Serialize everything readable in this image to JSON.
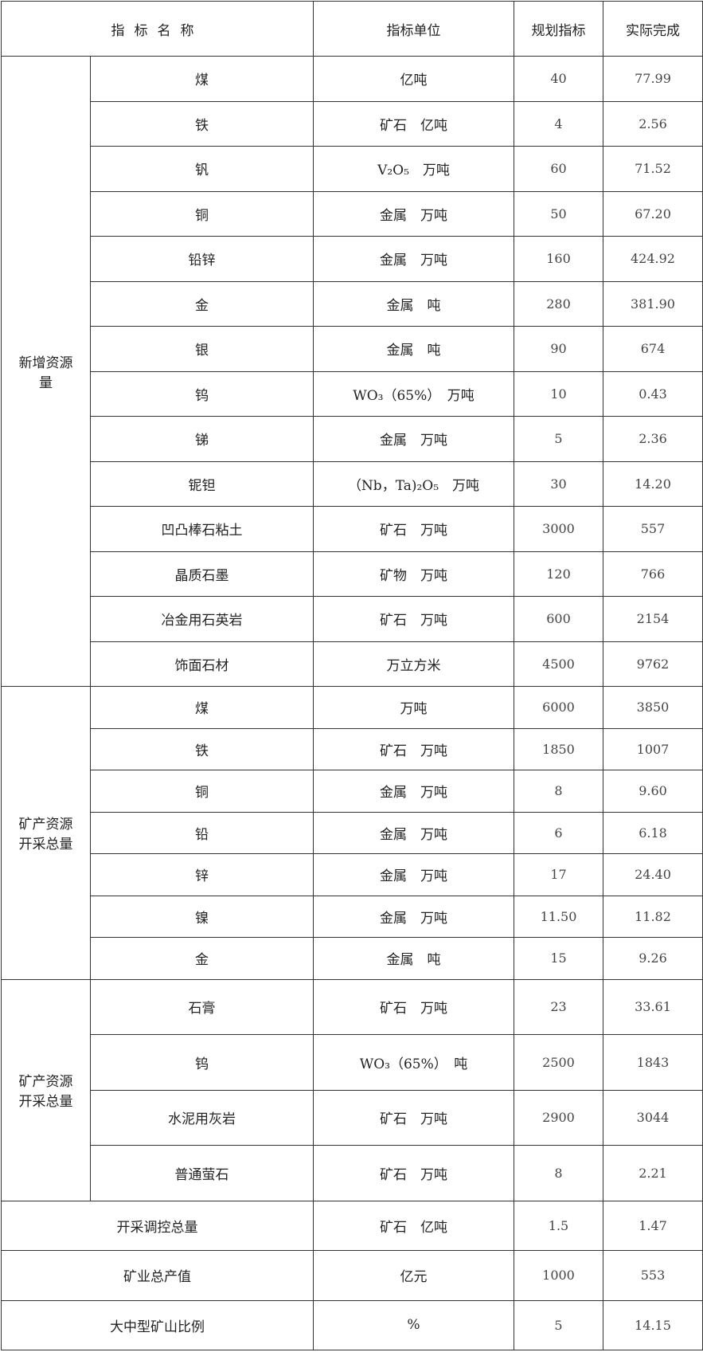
{
  "header": {
    "name": "指标名称",
    "unit": "指标单位",
    "plan": "规划指标",
    "actual": "实际完成"
  },
  "sections": [
    {
      "label": "新增资源量",
      "rows": [
        {
          "name": "煤",
          "unit": "亿吨",
          "plan": "40",
          "actual": "77.99"
        },
        {
          "name": "铁",
          "unit": "矿石　亿吨",
          "plan": "4",
          "actual": "2.56"
        },
        {
          "name": "钒",
          "unit": "V₂O₅　万吨",
          "plan": "60",
          "actual": "71.52"
        },
        {
          "name": "铜",
          "unit": "金属　万吨",
          "plan": "50",
          "actual": "67.20"
        },
        {
          "name": "铅锌",
          "unit": "金属　万吨",
          "plan": "160",
          "actual": "424.92"
        },
        {
          "name": "金",
          "unit": "金属　吨",
          "plan": "280",
          "actual": "381.90"
        },
        {
          "name": "银",
          "unit": "金属　吨",
          "plan": "90",
          "actual": "674"
        },
        {
          "name": "钨",
          "unit": "WO₃（65%）　万吨",
          "plan": "10",
          "actual": "0.43"
        },
        {
          "name": "锑",
          "unit": "金属　万吨",
          "plan": "5",
          "actual": "2.36"
        },
        {
          "name": "铌钽",
          "unit": "（Nb，Ta)₂O₅　万吨",
          "plan": "30",
          "actual": "14.20"
        },
        {
          "name": "凹凸棒石粘土",
          "unit": "矿石　万吨",
          "plan": "3000",
          "actual": "557"
        },
        {
          "name": "晶质石墨",
          "unit": "矿物　万吨",
          "plan": "120",
          "actual": "766"
        },
        {
          "name": "冶金用石英岩",
          "unit": "矿石　万吨",
          "plan": "600",
          "actual": "2154"
        },
        {
          "name": "饰面石材",
          "unit": "万立方米",
          "plan": "4500",
          "actual": "9762"
        }
      ]
    },
    {
      "label": "矿产资源开采总量",
      "rows": [
        {
          "name": "煤",
          "unit": "万吨",
          "plan": "6000",
          "actual": "3850"
        },
        {
          "name": "铁",
          "unit": "矿石　万吨",
          "plan": "1850",
          "actual": "1007"
        },
        {
          "name": "铜",
          "unit": "金属　万吨",
          "plan": "8",
          "actual": "9.60"
        },
        {
          "name": "铅",
          "unit": "金属　万吨",
          "plan": "6",
          "actual": "6.18"
        },
        {
          "name": "锌",
          "unit": "金属　万吨",
          "plan": "17",
          "actual": "24.40"
        },
        {
          "name": "镍",
          "unit": "金属　万吨",
          "plan": "11.50",
          "actual": "11.82"
        },
        {
          "name": "金",
          "unit": "金属　吨",
          "plan": "15",
          "actual": "9.26"
        }
      ]
    },
    {
      "label": "矿产资源开采总量",
      "rows": [
        {
          "name": "石膏",
          "unit": "矿石　万吨",
          "plan": "23",
          "actual": "33.61"
        },
        {
          "name": "钨",
          "unit": "WO₃（65%）　吨",
          "plan": "2500",
          "actual": "1843"
        },
        {
          "name": "水泥用灰岩",
          "unit": "矿石　万吨",
          "plan": "2900",
          "actual": "3044"
        },
        {
          "name": "普通萤石",
          "unit": "矿石　万吨",
          "plan": "8",
          "actual": "2.21"
        }
      ]
    }
  ],
  "footer_rows": [
    {
      "name": "开采调控总量",
      "unit": "矿石　亿吨",
      "plan": "1.5",
      "actual": "1.47"
    },
    {
      "name": "矿业总产值",
      "unit": "亿元",
      "plan": "1000",
      "actual": "553"
    },
    {
      "name": "大中型矿山比例",
      "unit": "%",
      "plan": "5",
      "actual": "14.15"
    }
  ]
}
